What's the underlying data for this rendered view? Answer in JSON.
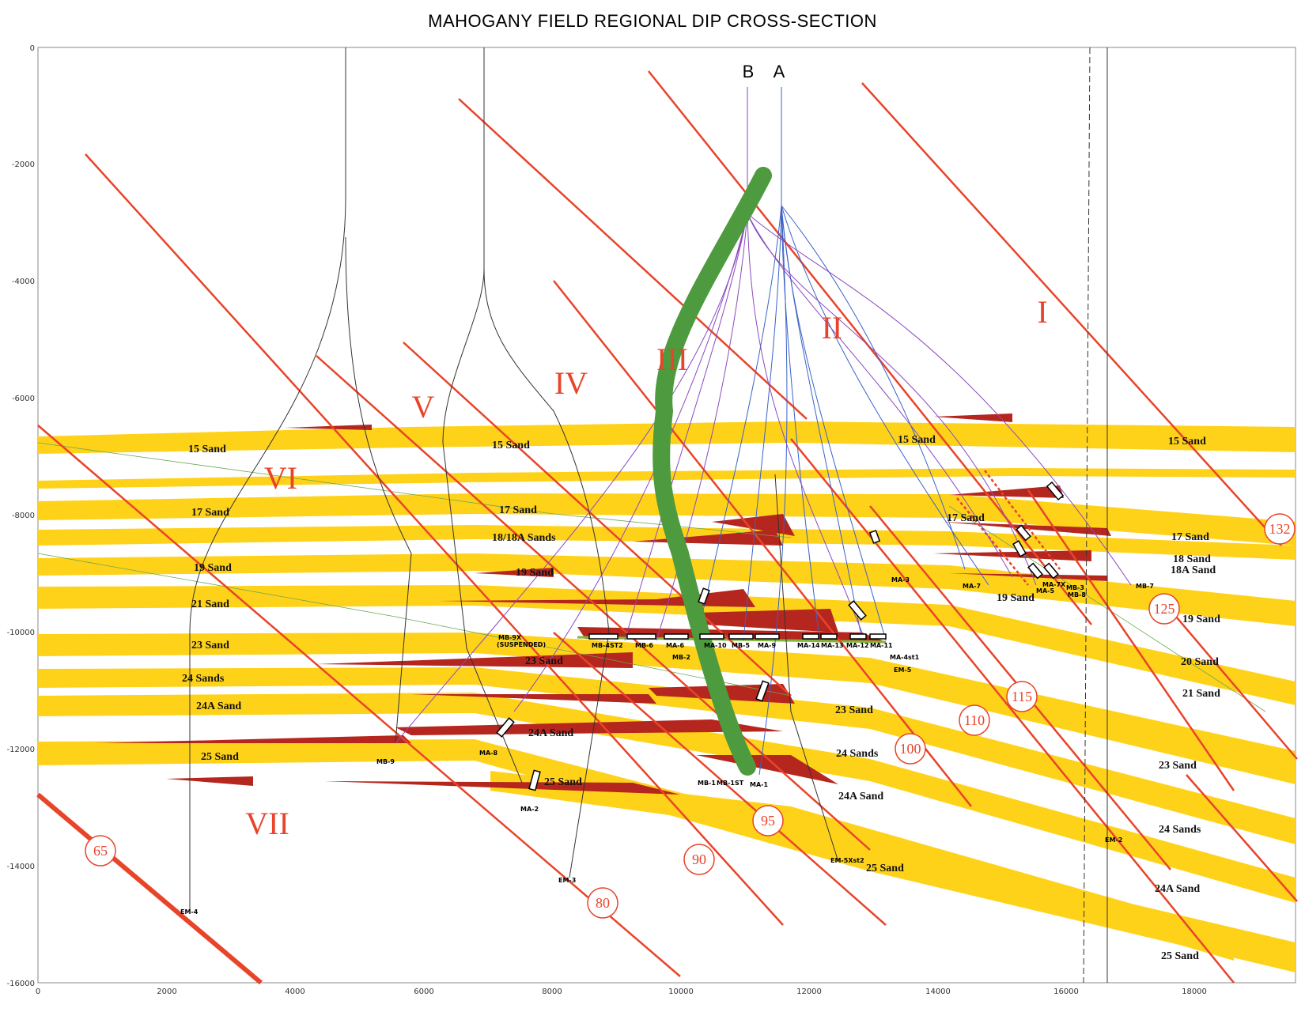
{
  "title": "MAHOGANY FIELD REGIONAL DIP CROSS-SECTION",
  "x_ticks": [
    "0",
    "2000",
    "4000",
    "6000",
    "8000",
    "10000",
    "12000",
    "14000",
    "16000",
    "18000"
  ],
  "y_ticks": [
    "0",
    "-2000",
    "-4000",
    "-6000",
    "-8000",
    "-10000",
    "-12000",
    "-14000",
    "-16000"
  ],
  "fault_blocks": [
    "I",
    "II",
    "III",
    "IV",
    "V",
    "VI",
    "VII"
  ],
  "fault_numbers": [
    "65",
    "80",
    "90",
    "95",
    "100",
    "110",
    "115",
    "125",
    "132"
  ],
  "sand_labels": {
    "s15a": "15 Sand",
    "s15b": "15 Sand",
    "s15c": "15 Sand",
    "s15d": "15 Sand",
    "s17a": "17 Sand",
    "s17b": "17 Sand",
    "s17c": "17 Sand",
    "s17d": "17 Sand",
    "s1818a": "18/18A Sands",
    "s18": "18 Sand",
    "s18a": "18A Sand",
    "s19a": "19 Sand",
    "s19b": "19 Sand",
    "s19c": "19 Sand",
    "s19d": "19 Sand",
    "s20": "20 Sand",
    "s21a": "21 Sand",
    "s21b": "21 Sand",
    "s23a": "23 Sand",
    "s23b": "23 Sand",
    "s23c": "23 Sand",
    "s23d": "23 Sand",
    "s24a": "24 Sands",
    "s24b": "24 Sands",
    "s24c": "24 Sands",
    "s24Aa": "24A Sand",
    "s24Ab": "24A Sand",
    "s24Ac": "24A Sand",
    "s24Ad": "24A Sand",
    "s25a": "25 Sand",
    "s25b": "25 Sand",
    "s25c": "25 Sand",
    "s25d": "25 Sand"
  },
  "platform_labels": {
    "b": "B",
    "a": "A"
  },
  "well_labels": {
    "mb9x": "MB-9X",
    "susp": "(SUSPENDED)",
    "mb4st2": "MB-4ST2",
    "mb6": "MB-6",
    "ma6": "MA-6",
    "mb2": "MB-2",
    "ma10": "MA-10",
    "mb5": "MB-5",
    "ma9": "MA-9",
    "ma14": "MA-14",
    "ma13": "MA-13",
    "ma12": "MA-12",
    "ma11": "MA-11",
    "ma4st1": "MA-4st1",
    "em5": "EM-5",
    "ma3": "MA-3",
    "ma7": "MA-7",
    "ma5": "MA-5",
    "ma7x": "MA-7X",
    "mb3": "MB-3",
    "mb8": "MB-8",
    "mb7": "MB-7",
    "mb9": "MB-9",
    "ma8": "MA-8",
    "ma2": "MA-2",
    "em3": "EM-3",
    "em4": "EM-4",
    "mb1": "MB-1",
    "mb1st": "MB-1ST",
    "ma1": "MA-1",
    "em5xst2": "EM-5Xst2",
    "em2": "EM-2"
  },
  "colors": {
    "sand": "#ffd21a",
    "reservoir": "#b5261e",
    "fault": "#e8442a",
    "trajectory": "#4e9a3e",
    "well_a": "#3a62c8",
    "well_b": "#8a4ac0",
    "contact": "#7fb83a"
  }
}
